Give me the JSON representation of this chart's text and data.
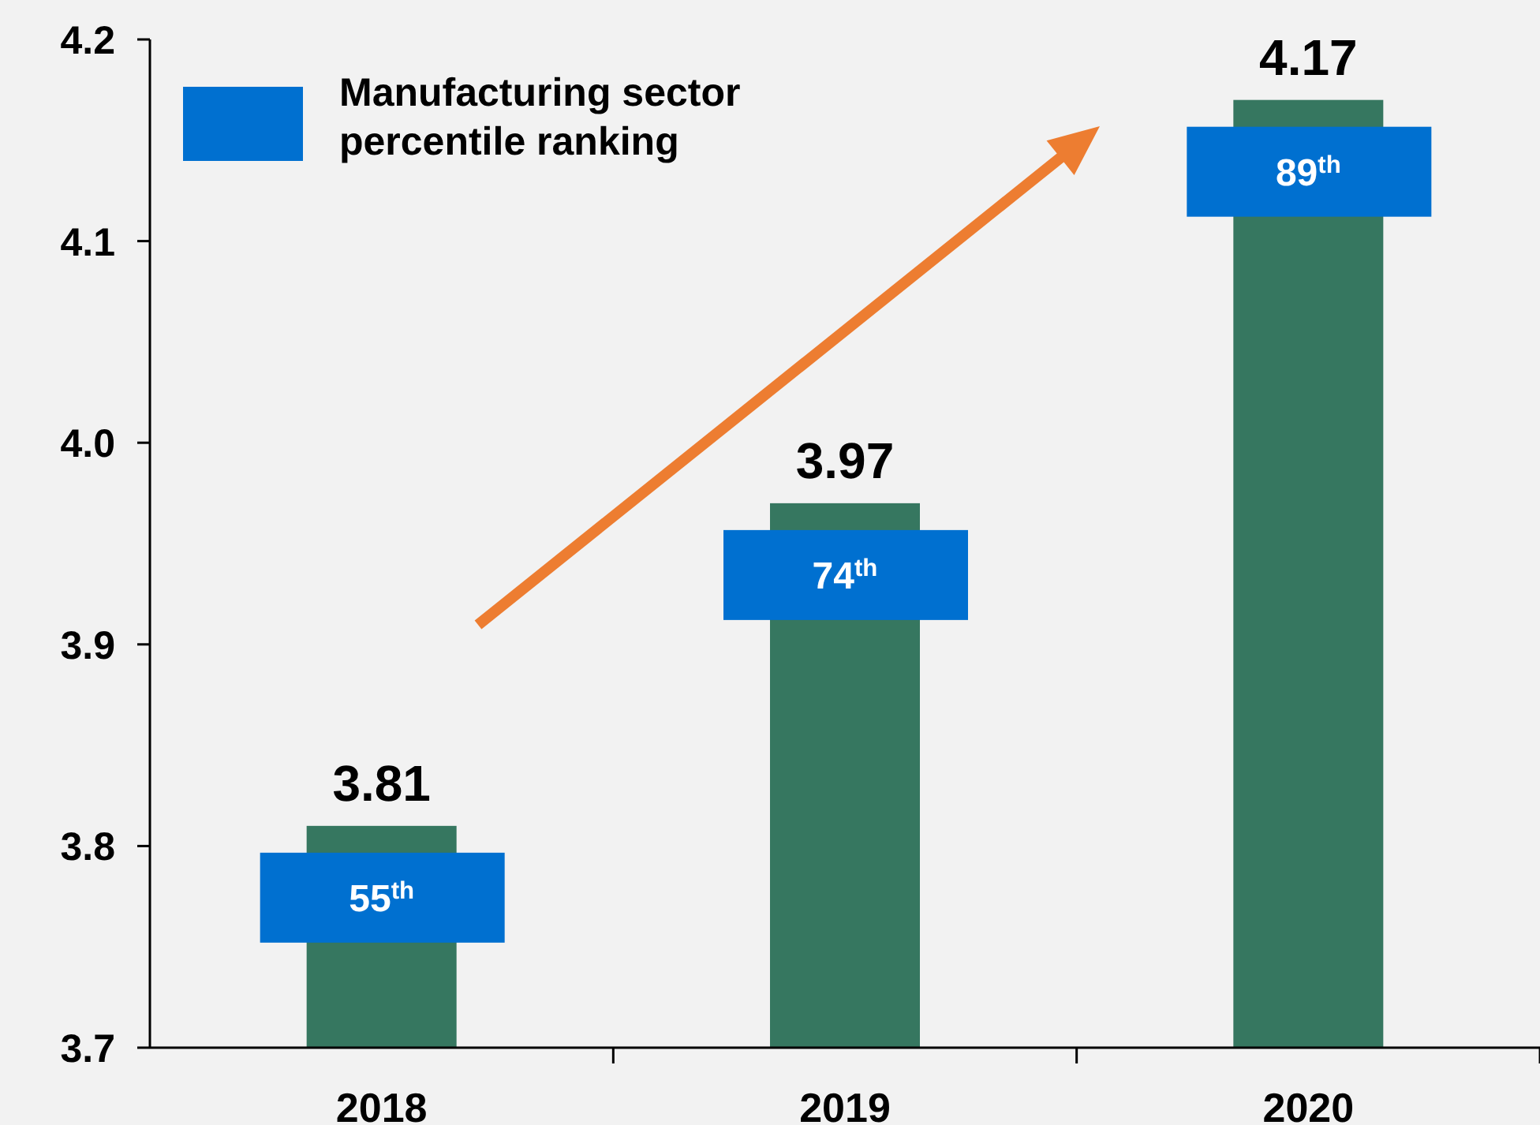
{
  "chart_data": {
    "type": "bar",
    "categories": [
      "2018",
      "2019",
      "2020"
    ],
    "series": [
      {
        "color": "#367760",
        "values": [
          3.81,
          3.97,
          4.17
        ]
      }
    ],
    "annotations": [
      "Manufacturing sector percentile ranking",
      "55$^{th}$",
      "74$^{th}$",
      "89$^{th}$"
    ],
    "ylim": [
      3.7,
      4.2
    ],
    "yticks": [
      3.7,
      3.8,
      3.9,
      {
        "value": 4,
        "label": "4.0"
      },
      4.1,
      4.2
    ],
    "data_labels": true
  }
}
